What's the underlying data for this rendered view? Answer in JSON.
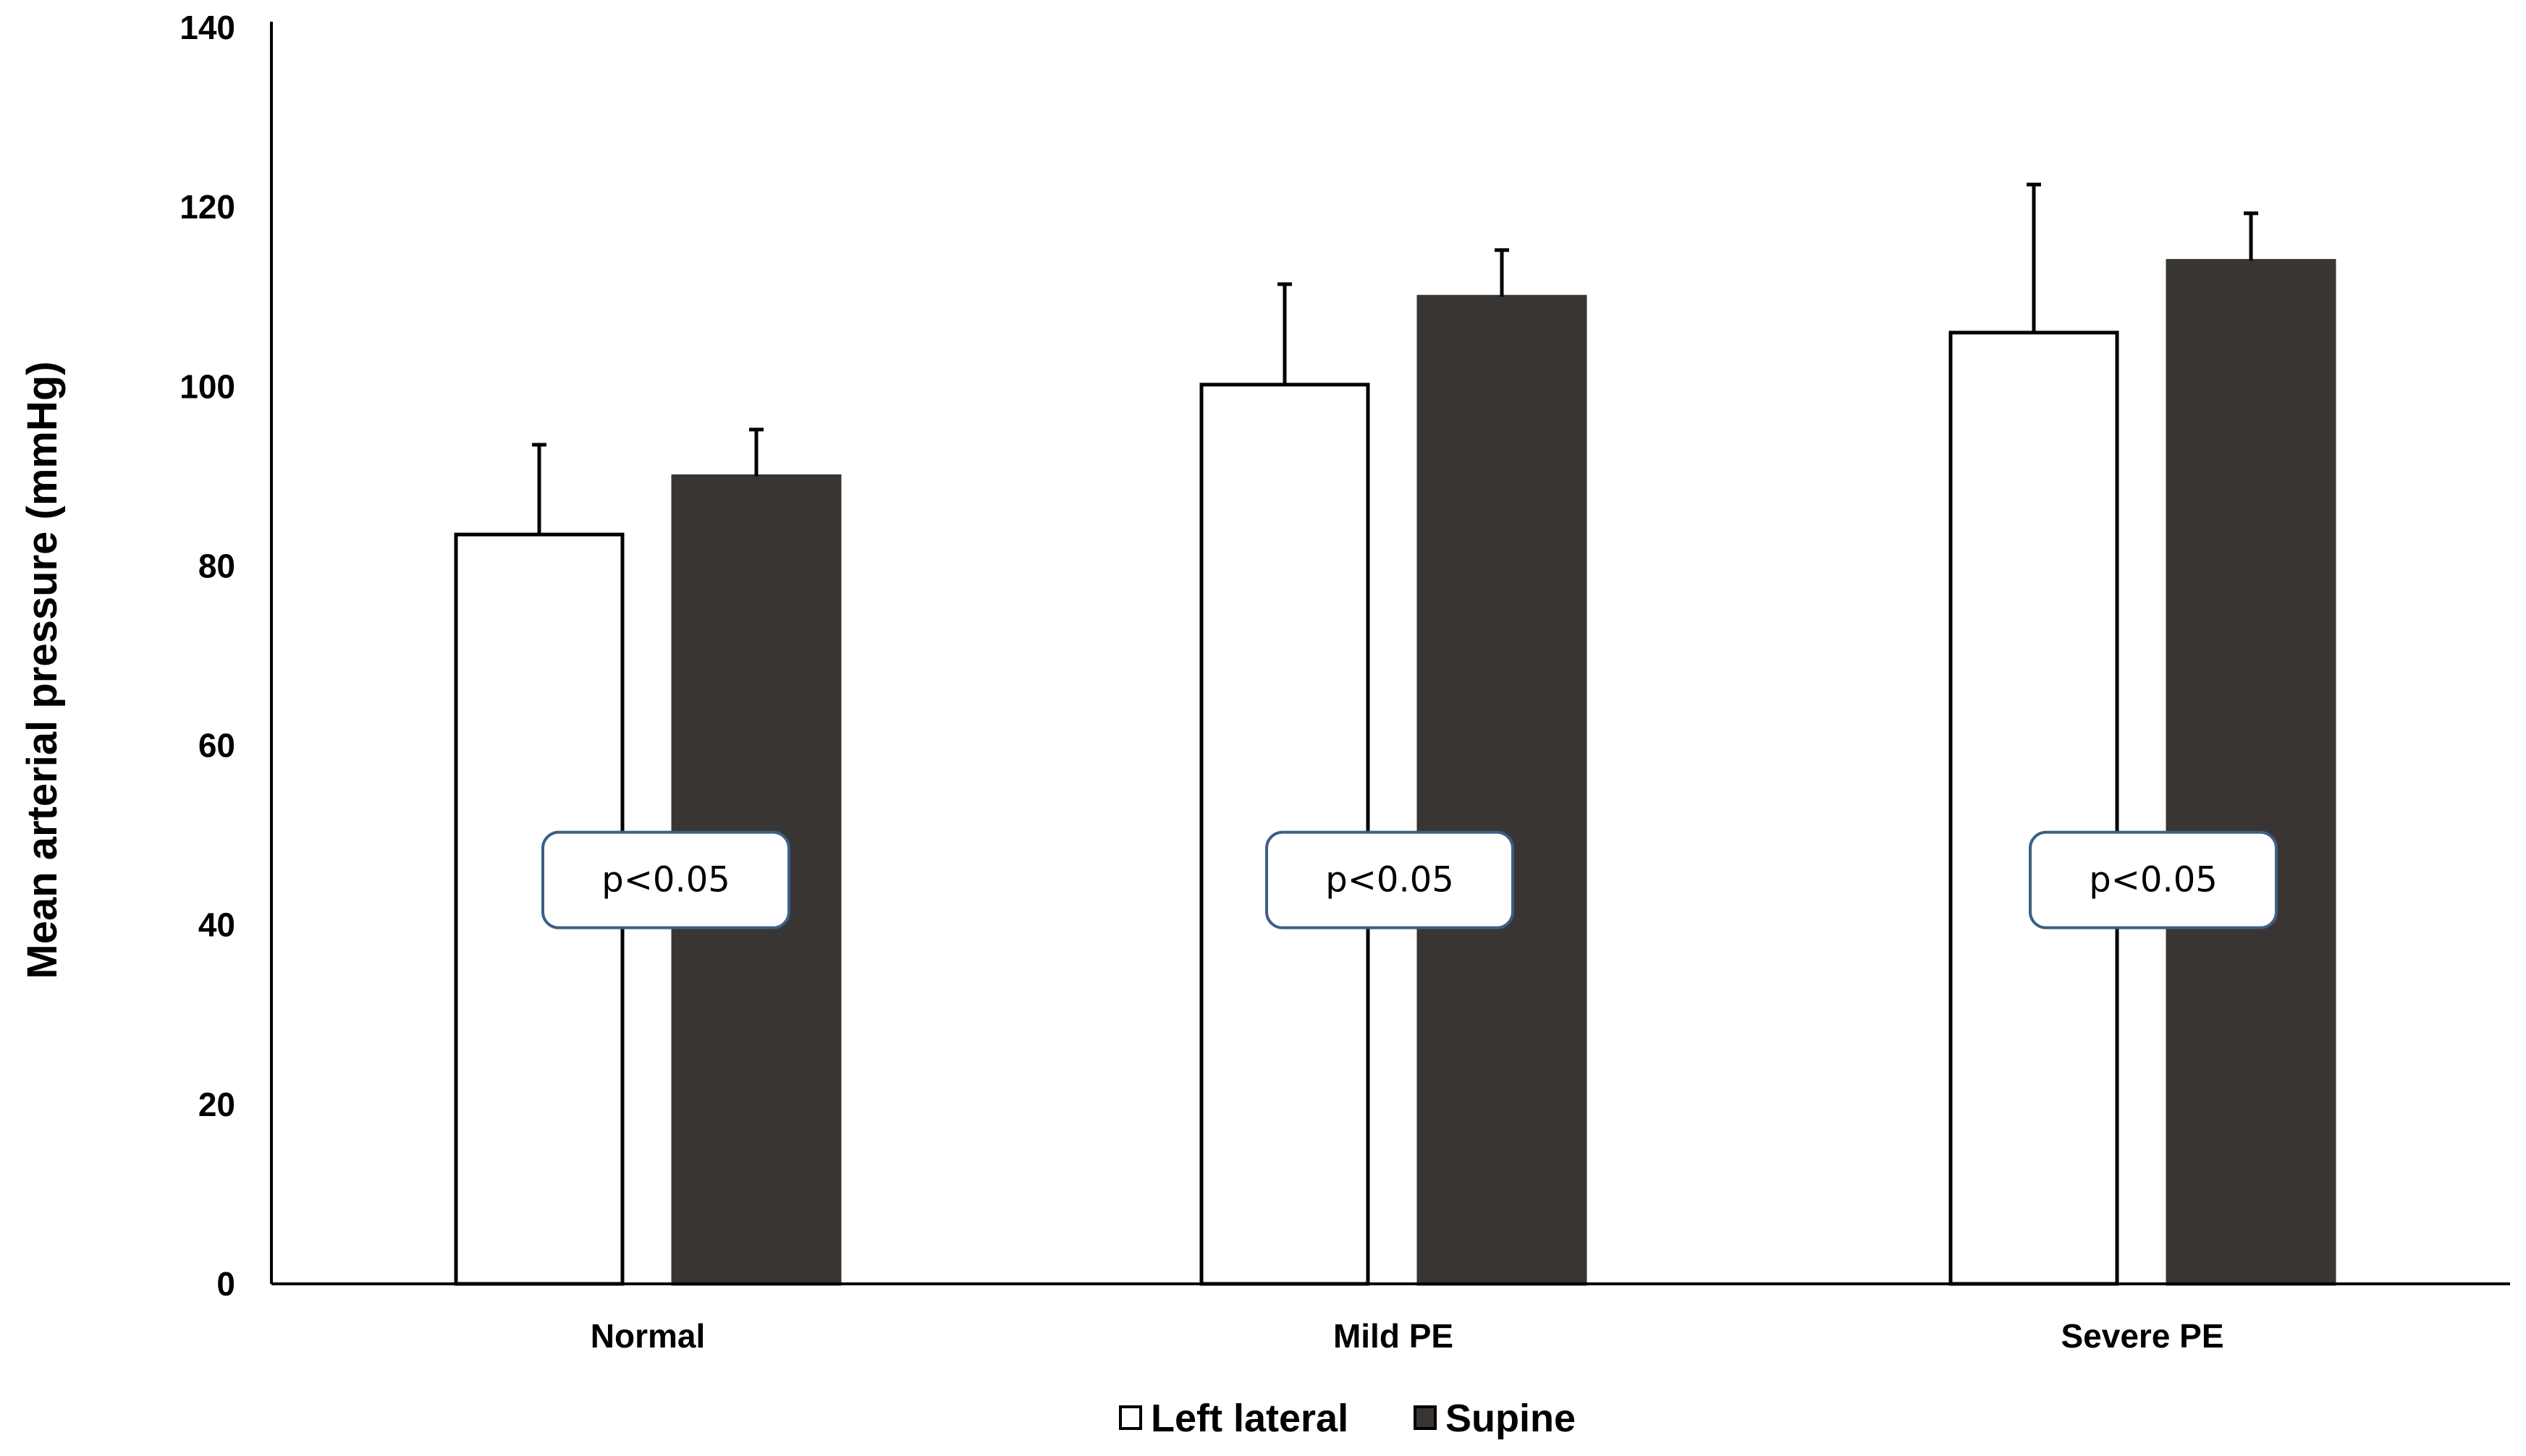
{
  "chart_data": {
    "type": "bar",
    "title": "",
    "xlabel": "",
    "ylabel": "Mean arterial pressure (mmHg)",
    "ylim": [
      0,
      140
    ],
    "yticks": [
      0,
      20,
      40,
      60,
      80,
      100,
      120,
      140
    ],
    "grid": false,
    "legend_position": "bottom-center",
    "categories": [
      "Normal",
      "Mild PE",
      "Severe PE"
    ],
    "series": [
      {
        "name": "Left lateral",
        "fill": "#ffffff",
        "stroke": "#000000",
        "values": [
          83.5,
          100.2,
          106
        ],
        "errors": [
          10,
          11.2,
          16.5
        ]
      },
      {
        "name": "Supine",
        "fill": "#393533",
        "stroke": "#393533",
        "values": [
          90,
          110,
          114
        ],
        "errors": [
          5.2,
          5.2,
          5.3
        ]
      }
    ],
    "annotations": [
      "p<0.05",
      "p<0.05",
      "p<0.05"
    ],
    "annotation_y": 45
  }
}
